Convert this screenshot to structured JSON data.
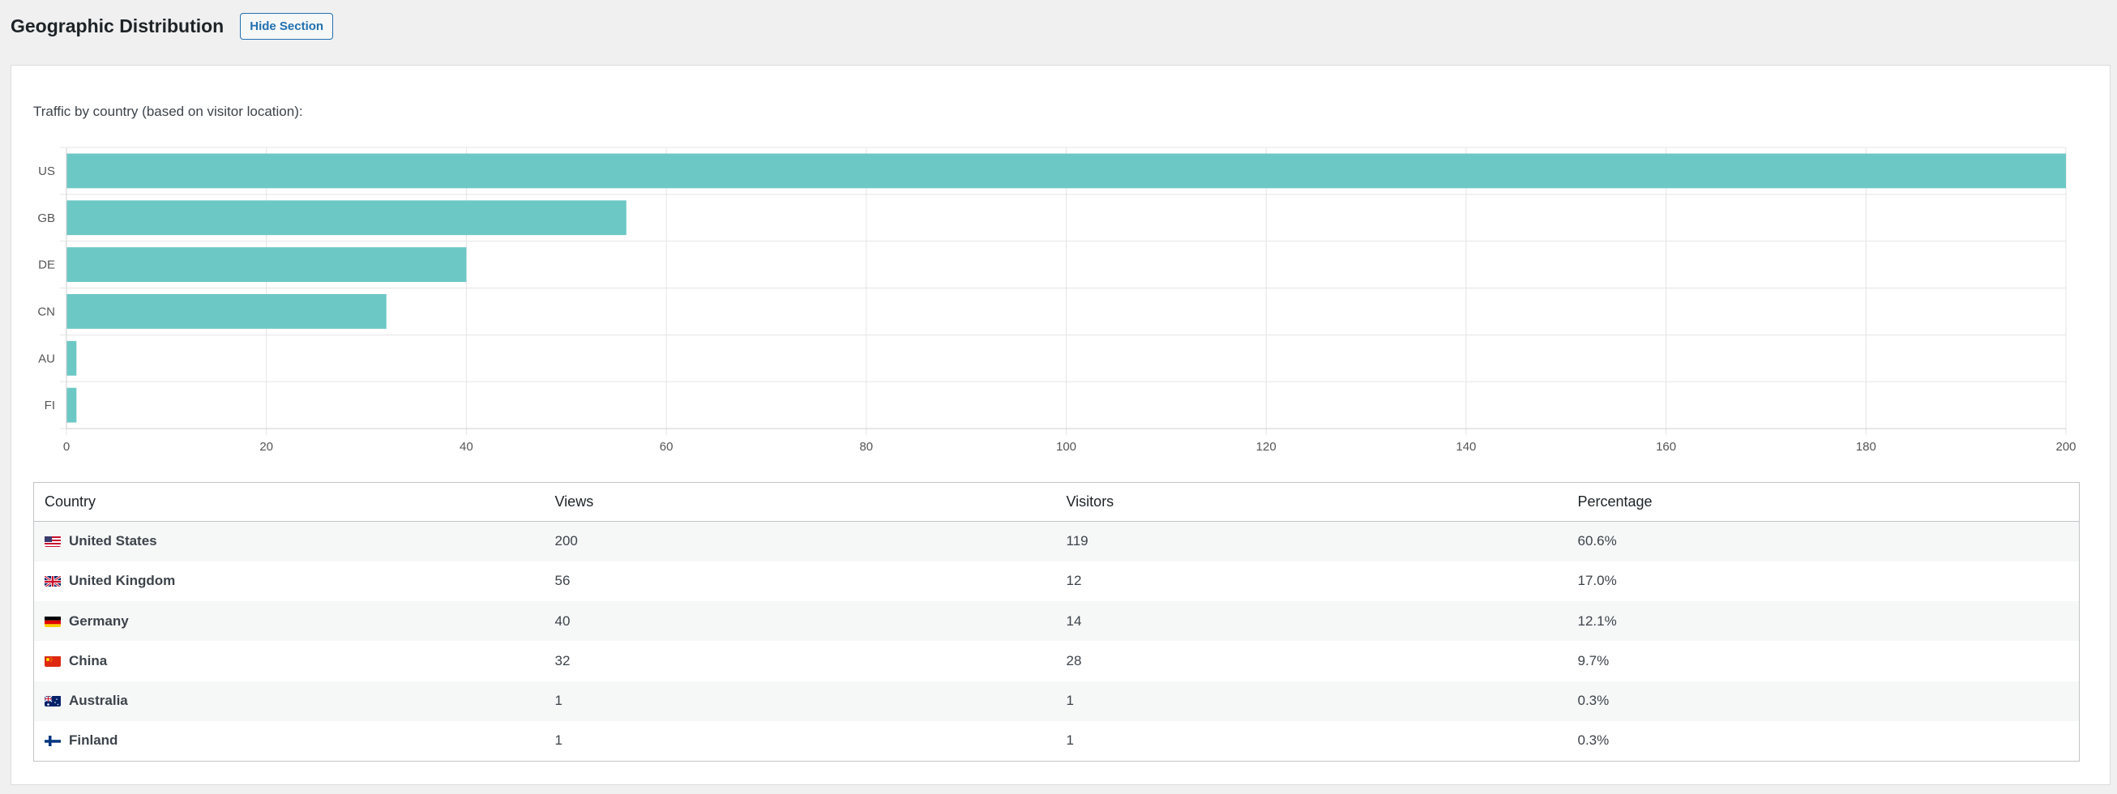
{
  "section": {
    "title": "Geographic Distribution",
    "hide_button": "Hide Section"
  },
  "chart_caption": "Traffic by country (based on visitor location):",
  "chart_data": {
    "type": "bar",
    "orientation": "horizontal",
    "categories": [
      "US",
      "GB",
      "DE",
      "CN",
      "AU",
      "FI"
    ],
    "values": [
      200,
      56,
      40,
      32,
      1,
      1
    ],
    "xlim": [
      0,
      200
    ],
    "xticks": [
      "0",
      "20",
      "40",
      "60",
      "80",
      "100",
      "120",
      "140",
      "160",
      "180",
      "200"
    ],
    "grid": true,
    "bar_color": "#6cc8c5"
  },
  "table": {
    "headers": [
      "Country",
      "Views",
      "Visitors",
      "Percentage"
    ],
    "rows": [
      {
        "flag": "us",
        "country": "United States",
        "views": "200",
        "visitors": "119",
        "percentage": "60.6%"
      },
      {
        "flag": "gb",
        "country": "United Kingdom",
        "views": "56",
        "visitors": "12",
        "percentage": "17.0%"
      },
      {
        "flag": "de",
        "country": "Germany",
        "views": "40",
        "visitors": "14",
        "percentage": "12.1%"
      },
      {
        "flag": "cn",
        "country": "China",
        "views": "32",
        "visitors": "28",
        "percentage": "9.7%"
      },
      {
        "flag": "au",
        "country": "Australia",
        "views": "1",
        "visitors": "1",
        "percentage": "0.3%"
      },
      {
        "flag": "fi",
        "country": "Finland",
        "views": "1",
        "visitors": "1",
        "percentage": "0.3%"
      }
    ]
  }
}
